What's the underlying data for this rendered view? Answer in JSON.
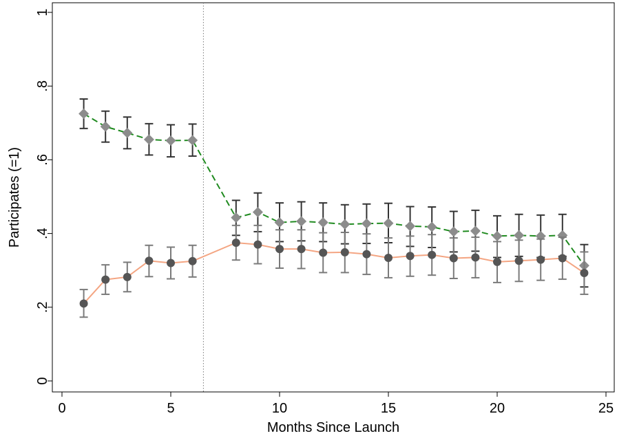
{
  "chart_data": {
    "type": "line",
    "title": "",
    "xlabel": "Months Since Launch",
    "ylabel": "Participates (=1)",
    "xlim": [
      0,
      25
    ],
    "ylim": [
      0,
      1
    ],
    "x_ticks": [
      0,
      5,
      10,
      15,
      20,
      25
    ],
    "x_tick_labels": [
      "0",
      "5",
      "10",
      "15",
      "20",
      "25"
    ],
    "y_ticks": [
      0,
      0.2,
      0.4,
      0.6,
      0.8,
      1
    ],
    "y_tick_labels": [
      "0",
      ".2",
      ".4",
      ".6",
      ".8",
      "1"
    ],
    "grid": false,
    "legend": "none",
    "reference_line": {
      "x": 6.5,
      "style": "dotted"
    },
    "series": [
      {
        "marker": "diamond",
        "line_style": "dashed",
        "line_color": "#1f8a1f",
        "marker_color": "#8c8c8c",
        "errorbar_color": "#333333",
        "x": [
          1,
          2,
          3,
          4,
          5,
          6,
          8,
          9,
          10,
          11,
          12,
          13,
          14,
          15,
          16,
          17,
          18,
          19,
          20,
          21,
          22,
          23,
          24
        ],
        "y": [
          0.725,
          0.69,
          0.673,
          0.655,
          0.652,
          0.653,
          0.443,
          0.458,
          0.43,
          0.433,
          0.43,
          0.425,
          0.427,
          0.428,
          0.42,
          0.418,
          0.405,
          0.407,
          0.393,
          0.395,
          0.393,
          0.395,
          0.313
        ],
        "ci_low": [
          0.685,
          0.648,
          0.63,
          0.613,
          0.608,
          0.61,
          0.395,
          0.405,
          0.378,
          0.38,
          0.378,
          0.372,
          0.373,
          0.375,
          0.365,
          0.362,
          0.35,
          0.352,
          0.335,
          0.338,
          0.335,
          0.338,
          0.255
        ],
        "ci_high": [
          0.765,
          0.732,
          0.716,
          0.698,
          0.695,
          0.697,
          0.49,
          0.51,
          0.483,
          0.486,
          0.483,
          0.478,
          0.48,
          0.482,
          0.473,
          0.472,
          0.46,
          0.463,
          0.448,
          0.452,
          0.45,
          0.452,
          0.37
        ]
      },
      {
        "marker": "circle",
        "line_style": "solid",
        "line_color": "#f4a582",
        "marker_color": "#555555",
        "errorbar_color": "#7a7a7a",
        "x": [
          1,
          2,
          3,
          4,
          5,
          6,
          8,
          9,
          10,
          11,
          12,
          13,
          14,
          15,
          16,
          17,
          18,
          19,
          20,
          21,
          22,
          23,
          24
        ],
        "y": [
          0.21,
          0.275,
          0.282,
          0.326,
          0.32,
          0.325,
          0.375,
          0.37,
          0.358,
          0.358,
          0.348,
          0.349,
          0.344,
          0.334,
          0.339,
          0.342,
          0.333,
          0.335,
          0.323,
          0.326,
          0.329,
          0.333,
          0.293
        ],
        "ci_low": [
          0.173,
          0.235,
          0.242,
          0.283,
          0.277,
          0.282,
          0.328,
          0.318,
          0.306,
          0.305,
          0.294,
          0.294,
          0.289,
          0.28,
          0.284,
          0.287,
          0.278,
          0.28,
          0.267,
          0.27,
          0.273,
          0.276,
          0.235
        ],
        "ci_high": [
          0.248,
          0.315,
          0.322,
          0.368,
          0.363,
          0.368,
          0.422,
          0.422,
          0.41,
          0.41,
          0.402,
          0.403,
          0.399,
          0.388,
          0.393,
          0.397,
          0.388,
          0.39,
          0.378,
          0.382,
          0.385,
          0.39,
          0.35
        ]
      }
    ]
  }
}
